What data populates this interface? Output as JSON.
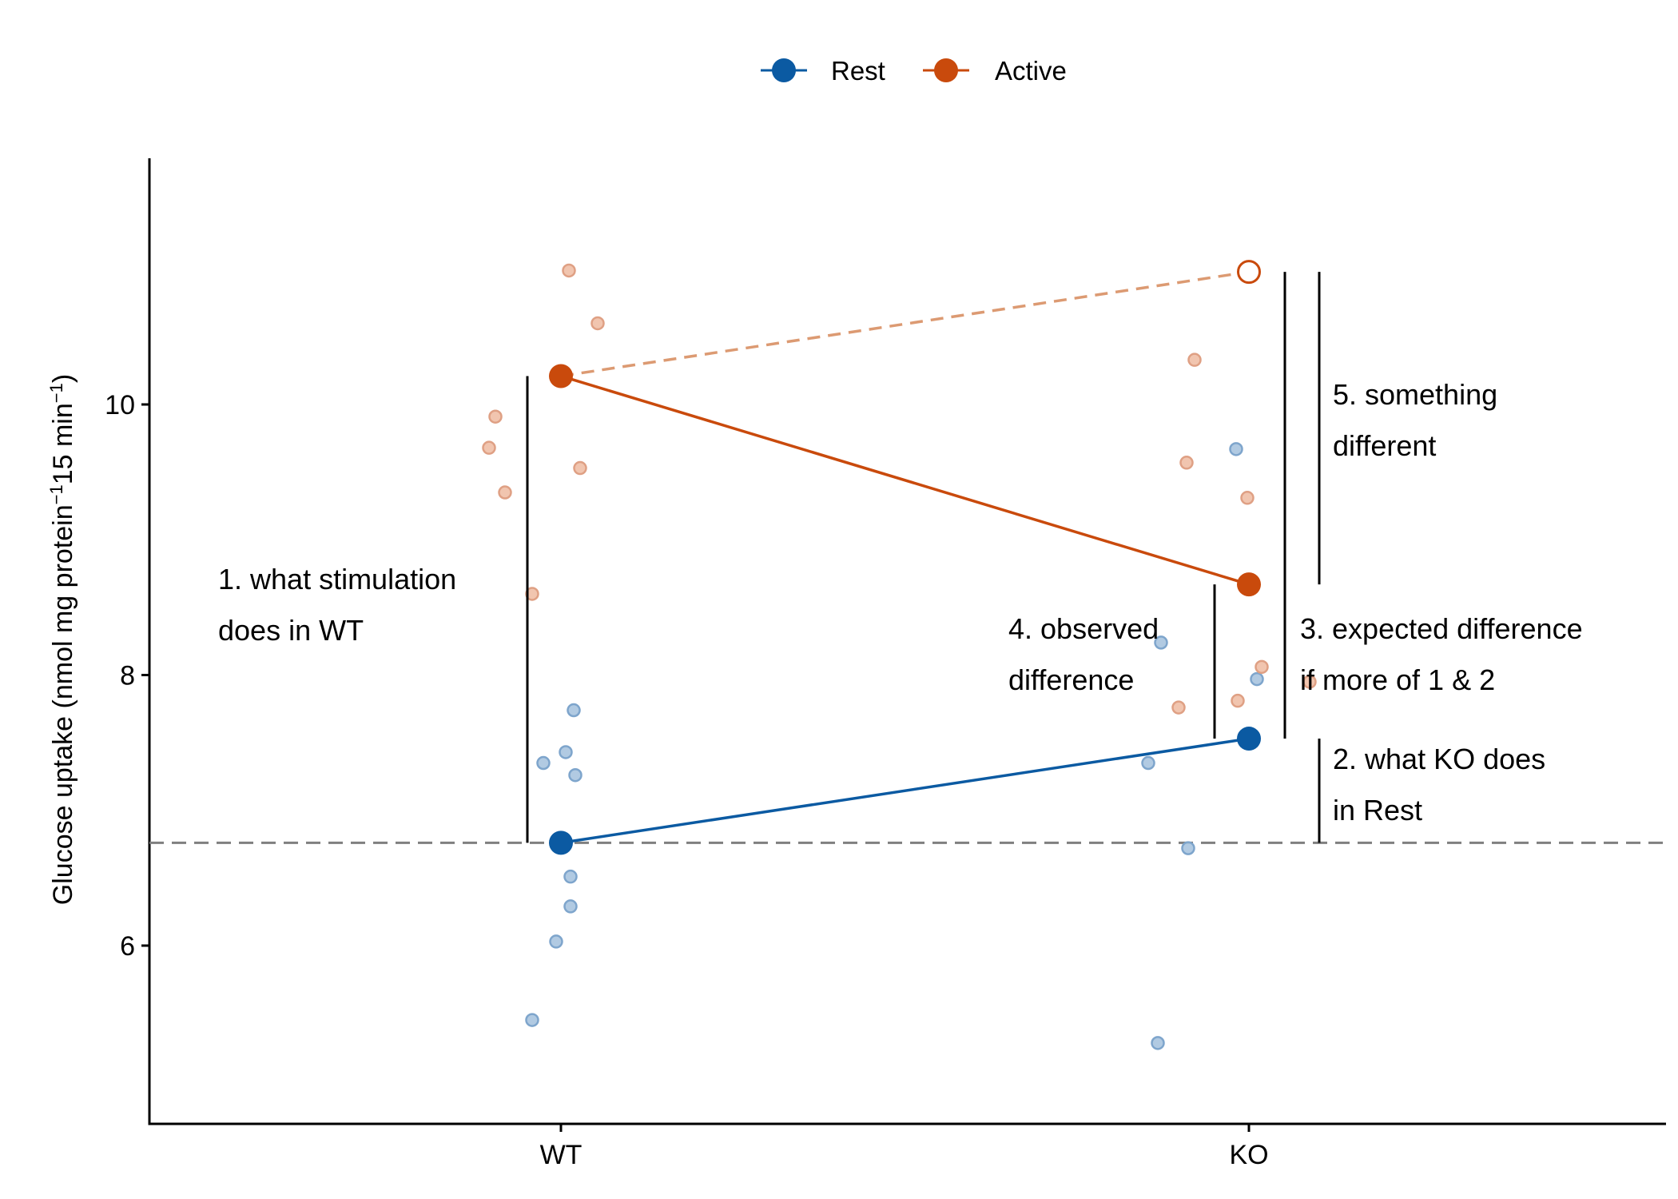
{
  "chart_data": {
    "type": "scatter",
    "ylabel_parts": [
      "Glucose uptake (nmol mg protein",
      "−1",
      "15 min",
      "−1",
      ")"
    ],
    "categories": [
      "WT",
      "KO"
    ],
    "ylim": [
      4.65,
      11.8
    ],
    "yticks": [
      6,
      8,
      10
    ],
    "grid": false,
    "legend_position": "top",
    "reference_line_y": 6.76,
    "series": [
      {
        "name": "Rest",
        "color": "#0b5aa2",
        "means": [
          6.76,
          7.53
        ],
        "points": [
          {
            "x": "WT",
            "y": 7.35,
            "jitter": -0.11
          },
          {
            "x": "WT",
            "y": 7.43,
            "jitter": 0.03
          },
          {
            "x": "WT",
            "y": 7.74,
            "jitter": 0.08
          },
          {
            "x": "WT",
            "y": 7.26,
            "jitter": 0.09
          },
          {
            "x": "WT",
            "y": 6.51,
            "jitter": 0.06
          },
          {
            "x": "WT",
            "y": 6.29,
            "jitter": 0.06
          },
          {
            "x": "WT",
            "y": 6.03,
            "jitter": -0.03
          },
          {
            "x": "WT",
            "y": 5.45,
            "jitter": -0.18
          },
          {
            "x": "KO",
            "y": 9.67,
            "jitter": -0.08
          },
          {
            "x": "KO",
            "y": 8.24,
            "jitter": -0.55
          },
          {
            "x": "KO",
            "y": 7.97,
            "jitter": 0.05
          },
          {
            "x": "KO",
            "y": 7.35,
            "jitter": -0.63
          },
          {
            "x": "KO",
            "y": 6.72,
            "jitter": -0.38
          },
          {
            "x": "KO",
            "y": 5.28,
            "jitter": -0.57
          }
        ]
      },
      {
        "name": "Active",
        "color": "#c94a0c",
        "means": [
          10.21,
          8.67
        ],
        "points": [
          {
            "x": "WT",
            "y": 10.99,
            "jitter": 0.05
          },
          {
            "x": "WT",
            "y": 10.6,
            "jitter": 0.23
          },
          {
            "x": "WT",
            "y": 9.91,
            "jitter": -0.41
          },
          {
            "x": "WT",
            "y": 9.68,
            "jitter": -0.45
          },
          {
            "x": "WT",
            "y": 9.53,
            "jitter": 0.12
          },
          {
            "x": "WT",
            "y": 9.35,
            "jitter": -0.35
          },
          {
            "x": "WT",
            "y": 8.6,
            "jitter": -0.18
          },
          {
            "x": "KO",
            "y": 10.33,
            "jitter": -0.34
          },
          {
            "x": "KO",
            "y": 9.57,
            "jitter": -0.39
          },
          {
            "x": "KO",
            "y": 9.31,
            "jitter": -0.01
          },
          {
            "x": "KO",
            "y": 8.06,
            "jitter": 0.08
          },
          {
            "x": "KO",
            "y": 7.95,
            "jitter": 0.38
          },
          {
            "x": "KO",
            "y": 7.81,
            "jitter": -0.07
          },
          {
            "x": "KO",
            "y": 7.76,
            "jitter": -0.44
          }
        ]
      }
    ],
    "expected_point": {
      "x": "KO",
      "y": 10.98
    },
    "annotations": [
      {
        "lines": [
          "1. what stimulation",
          "does in WT"
        ]
      },
      {
        "lines": [
          "2. what KO does",
          "in Rest"
        ]
      },
      {
        "lines": [
          "3. expected difference",
          "if more of 1 & 2"
        ]
      },
      {
        "lines": [
          "4. observed",
          "difference"
        ]
      },
      {
        "lines": [
          "5. something",
          "different"
        ]
      }
    ]
  }
}
